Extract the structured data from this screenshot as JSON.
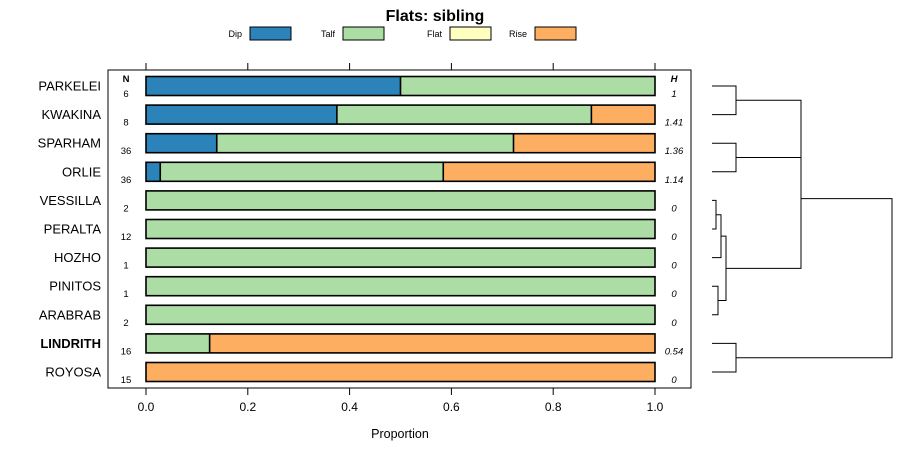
{
  "chart_data": {
    "type": "bar",
    "stacked": true,
    "orientation": "horizontal",
    "title": "Flats: sibling",
    "xlabel": "Proportion",
    "xlim": [
      0,
      1
    ],
    "xticks": [
      "0.0",
      "0.2",
      "0.4",
      "0.6",
      "0.8",
      "1.0"
    ],
    "n_header": "N",
    "h_header": "H",
    "legend": [
      {
        "name": "Dip",
        "color": "#2b83ba"
      },
      {
        "name": "Talf",
        "color": "#abdda4"
      },
      {
        "name": "Flat",
        "color": "#ffffbf"
      },
      {
        "name": "Rise",
        "color": "#fdae61"
      }
    ],
    "rows": [
      {
        "label": "PARKELEI",
        "n": "6",
        "h": "1",
        "values": [
          0.5,
          0.5,
          0,
          0
        ],
        "bold": false
      },
      {
        "label": "KWAKINA",
        "n": "8",
        "h": "1.41",
        "values": [
          0.375,
          0.5,
          0,
          0.125
        ],
        "bold": false
      },
      {
        "label": "SPARHAM",
        "n": "36",
        "h": "1.36",
        "values": [
          0.139,
          0.583,
          0,
          0.278
        ],
        "bold": false
      },
      {
        "label": "ORLIE",
        "n": "36",
        "h": "1.14",
        "values": [
          0.028,
          0.556,
          0,
          0.416
        ],
        "bold": false
      },
      {
        "label": "VESSILLA",
        "n": "2",
        "h": "0",
        "values": [
          0,
          1,
          0,
          0
        ],
        "bold": false
      },
      {
        "label": "PERALTA",
        "n": "12",
        "h": "0",
        "values": [
          0,
          1,
          0,
          0
        ],
        "bold": false
      },
      {
        "label": "HOZHO",
        "n": "1",
        "h": "0",
        "values": [
          0,
          1,
          0,
          0
        ],
        "bold": false
      },
      {
        "label": "PINITOS",
        "n": "1",
        "h": "0",
        "values": [
          0,
          1,
          0,
          0
        ],
        "bold": false
      },
      {
        "label": "ARABRAB",
        "n": "2",
        "h": "0",
        "values": [
          0,
          1,
          0,
          0
        ],
        "bold": false
      },
      {
        "label": "LINDRITH",
        "n": "16",
        "h": "0.54",
        "values": [
          0,
          0.125,
          0,
          0.875
        ],
        "bold": true
      },
      {
        "label": "ROYOSA",
        "n": "15",
        "h": "0",
        "values": [
          0,
          0,
          0,
          1
        ],
        "bold": false
      }
    ],
    "dendrogram": {
      "description": "hierarchical clustering of rows",
      "merges": [
        {
          "left": "PARKELEI",
          "right": "KWAKINA",
          "height": 0.21
        },
        {
          "left": "SPARHAM",
          "right": "ORLIE",
          "height": 0.21
        },
        {
          "left": "VESSILLA",
          "right": "PERALTA",
          "height": 0.02
        },
        {
          "left": "PINITOS",
          "right": "ARABRAB",
          "height": 0.05
        },
        {
          "left": "LINDRITH",
          "right": "ROYOSA",
          "height": 0.21
        }
      ]
    }
  }
}
